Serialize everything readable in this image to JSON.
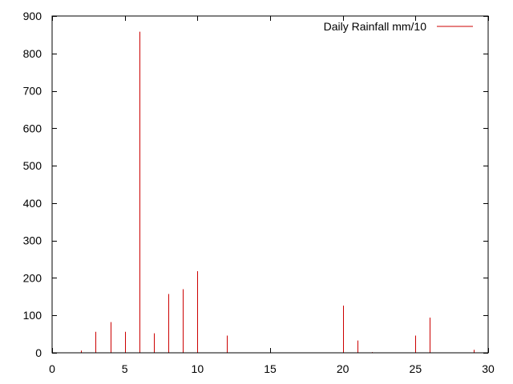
{
  "chart_data": {
    "type": "bar",
    "title": "",
    "xlabel": "",
    "ylabel": "",
    "xlim": [
      0,
      30
    ],
    "ylim": [
      0,
      900
    ],
    "xticks": [
      0,
      5,
      10,
      15,
      20,
      25,
      30
    ],
    "yticks": [
      0,
      100,
      200,
      300,
      400,
      500,
      600,
      700,
      800,
      900
    ],
    "grid": false,
    "legend_position": "top-right",
    "series": [
      {
        "name": "Daily Rainfall mm/10",
        "color": "#cc0000",
        "style": "impulses",
        "x": [
          2,
          3,
          4,
          5,
          6,
          7,
          8,
          9,
          10,
          12,
          20,
          21,
          22,
          25,
          26,
          29
        ],
        "values": [
          6,
          56,
          82,
          56,
          858,
          52,
          157,
          170,
          218,
          46,
          126,
          33,
          2,
          46,
          94,
          8
        ]
      }
    ]
  }
}
